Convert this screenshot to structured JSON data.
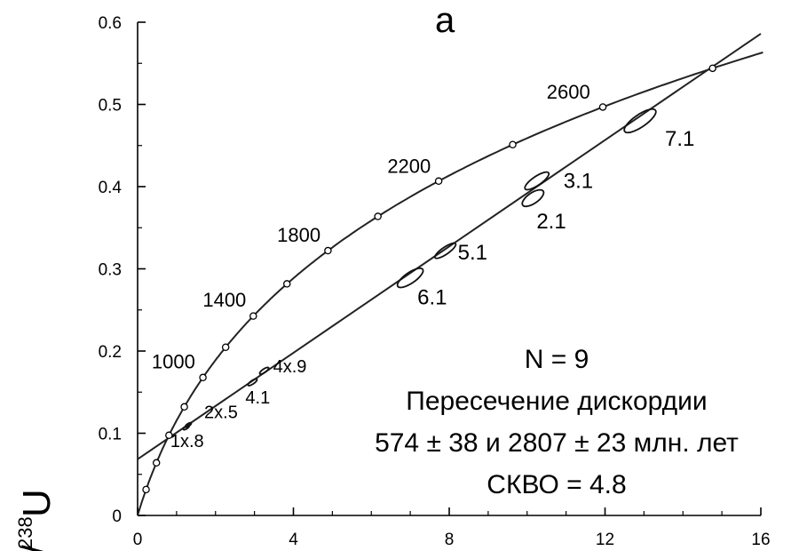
{
  "chart_data": {
    "type": "scatter",
    "title": "а",
    "xlim": [
      0,
      16
    ],
    "ylim": [
      0,
      0.6
    ],
    "x_ticks": [
      "0",
      "4",
      "8",
      "12",
      "16"
    ],
    "y_ticks": [
      "0",
      "0.1",
      "0.2",
      "0.3",
      "0.4",
      "0.5",
      "0.6"
    ],
    "ylabel_main": "U",
    "ylabel_sup": "238",
    "ylabel_prefix": "b/",
    "concordia_age_labels": [
      {
        "label": "1000",
        "x": 1.66,
        "y": 0.168
      },
      {
        "label": "1400",
        "x": 2.97,
        "y": 0.243
      },
      {
        "label": "1800",
        "x": 4.88,
        "y": 0.322
      },
      {
        "label": "2200",
        "x": 7.71,
        "y": 0.406
      },
      {
        "label": "2600",
        "x": 11.8,
        "y": 0.496
      }
    ],
    "discordia": {
      "lower_intercept": {
        "x": 0.76,
        "y": 0.093
      },
      "upper_intercept": {
        "x": 14.7,
        "y": 0.544
      }
    },
    "spots": [
      {
        "label": "1x.8",
        "x": 1.25,
        "y": 0.107
      },
      {
        "label": "2x.5",
        "x": 1.3,
        "y": 0.11
      },
      {
        "label": "4.1",
        "x": 2.95,
        "y": 0.162
      },
      {
        "label": "4x.9",
        "x": 3.25,
        "y": 0.176
      },
      {
        "label": "6.1",
        "x": 7.0,
        "y": 0.289
      },
      {
        "label": "5.1",
        "x": 7.9,
        "y": 0.322
      },
      {
        "label": "2.1",
        "x": 10.15,
        "y": 0.386
      },
      {
        "label": "3.1",
        "x": 10.25,
        "y": 0.407
      },
      {
        "label": "7.1",
        "x": 12.9,
        "y": 0.48
      }
    ],
    "info": {
      "n": "N = 9",
      "intercept_title": "Пересечение дискордии",
      "intercept_values": "574 ± 38 и 2807 ± 23 млн. лет",
      "mswd": "СКВО = 4.8"
    }
  }
}
